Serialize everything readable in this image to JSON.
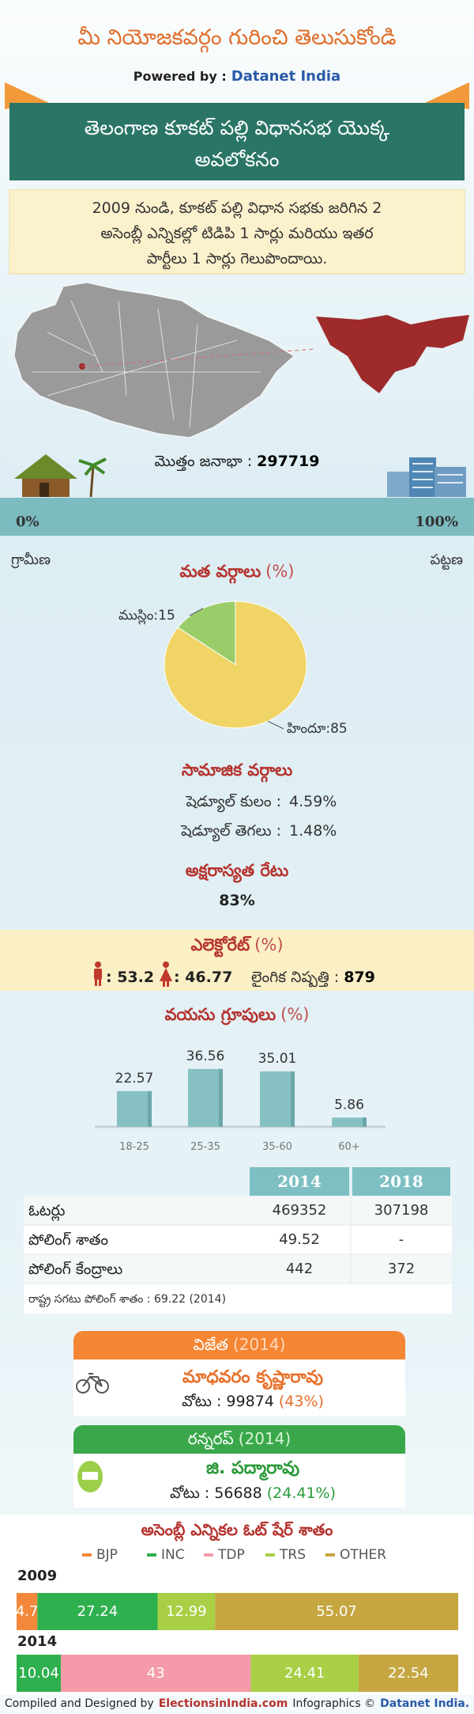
{
  "header": {
    "title": "మీ నియోజకవర్గం గురించి తెలుసుకోండి",
    "powered_by": "Powered by :",
    "brand": "Datanet India"
  },
  "banner": {
    "lines": [
      "తెలంగాణ కూకట్ పల్లి విధానసభ యొక్క",
      "అవలోకనం"
    ]
  },
  "summary": {
    "lines": [
      "2009 నుండి, కూకట్ పల్లి విధాన సభకు జరిగిన 2",
      "అసెంబ్లీ ఎన్నికల్లో టిడిపి 1 సార్లు మరియు ఇతర",
      "పార్టీలు 1 సార్లు గెలుపొందాయి."
    ]
  },
  "population": {
    "label": "మొత్తం జనాభా :",
    "value": 297719
  },
  "urbanization": {
    "rural": {
      "value": 0,
      "label": "0%"
    },
    "urban": {
      "value": 100,
      "label": "100%"
    },
    "rural_label": "గ్రామీణ",
    "urban_label": "పట్టణ"
  },
  "social": {
    "title": "సామాజిక వర్గాలు",
    "rows": [
      {
        "label": "షెడ్యూల్ కులం :",
        "value": 4.59,
        "value_label": "4.59%"
      },
      {
        "label": "షెడ్యూల్ తెగలు :",
        "value": 1.48,
        "value_label": "1.48%"
      }
    ]
  },
  "literacy": {
    "title": "అక్షరాస్యత రేటు",
    "value": 83,
    "value_label": "83%"
  },
  "electorate": {
    "title": "ఎలెక్టోరేట్",
    "unit": "(%)",
    "male": {
      "value": 53.2,
      "label": ": 53.2"
    },
    "female": {
      "value": 46.77,
      "label": ": 46.77"
    },
    "sex_ratio_label": "లైంగిక నిష్పత్తి :",
    "sex_ratio": 879
  },
  "chart_data": [
    {
      "type": "pie",
      "title": "మత వర్గాలు",
      "title_unit": "(%)",
      "values": [
        15,
        85
      ],
      "value_labels": [
        "ముస్లిం:15",
        "హిందూ:85"
      ],
      "colors": [
        "#9acd6a",
        "#f0d466"
      ]
    },
    {
      "type": "bar",
      "title": "వయసు గ్రూపులు",
      "title_unit": "(%)",
      "categories": [
        "18-25",
        "25-35",
        "35-60",
        "60+"
      ],
      "values": [
        22.57,
        36.56,
        35.01,
        5.86
      ],
      "color": "#86c0c3"
    },
    {
      "type": "stacked-bar",
      "orientation": "horizontal",
      "title": "అసెంబ్లీ ఎన్నికల ఓట్ షేర్ శాతం",
      "categories": [
        "2009",
        "2014"
      ],
      "series": [
        {
          "name": "BJP",
          "color": "#f4883a",
          "values": [
            4.7,
            null
          ]
        },
        {
          "name": "INC",
          "color": "#2fb04f",
          "values": [
            27.24,
            10.04
          ]
        },
        {
          "name": "TDP",
          "color": "#f49aa8",
          "values": [
            null,
            43
          ]
        },
        {
          "name": "TRS",
          "color": "#a8cf45",
          "values": [
            12.99,
            24.41
          ]
        },
        {
          "name": "OTHER",
          "color": "#c5a640",
          "values": [
            55.07,
            22.54
          ]
        }
      ]
    }
  ],
  "voters_table": {
    "columns": [
      "2014",
      "2018"
    ],
    "rows": [
      [
        "ఓటర్లు",
        469352,
        307198
      ],
      [
        "పోలింగ్ శాతం",
        49.52,
        "-"
      ],
      [
        "పోలింగ్ కేంద్రాలు",
        442,
        372
      ]
    ],
    "note": "రాష్ట్ర సగటు పోలింగ్ శాతం : 69.22 (2014)"
  },
  "winner": {
    "title": "విజేత",
    "year": "(2014)",
    "name": "మాధవరం కృష్ణారావు",
    "votes_label": "వోటు :",
    "votes": 99874,
    "share": {
      "value": 43,
      "label": "(43%)"
    }
  },
  "runner_up": {
    "title": "రన్నరప్",
    "year": "(2014)",
    "name": "జి. పద్మారావు",
    "votes_label": "వోటు :",
    "votes": 56688,
    "share": {
      "value": 24.41,
      "label": "(24.41%)"
    }
  },
  "footer": {
    "compiled": "Compiled and Designed by",
    "site": "ElectionsinIndia.com",
    "infographics": "Infographics ©",
    "brand": "Datanet India."
  }
}
